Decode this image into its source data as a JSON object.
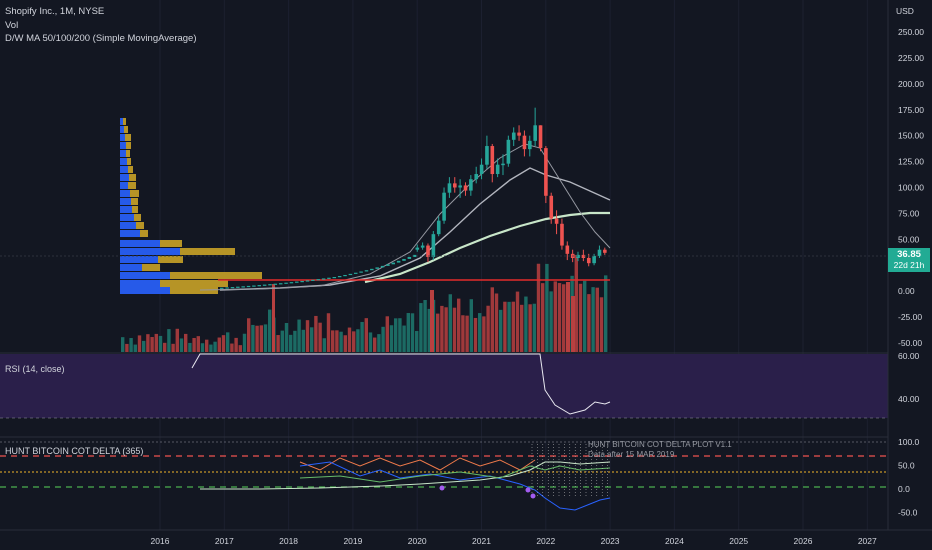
{
  "header": {
    "symbol_line": "Shopify Inc., 1M, NYSE",
    "vol_label": "Vol",
    "ma_label": "D/W MA 50/100/200 (Simple MovingAverage)"
  },
  "price_axis": {
    "currency": "USD",
    "ticks": [
      "250.00",
      "225.00",
      "200.00",
      "175.00",
      "150.00",
      "125.00",
      "100.00",
      "75.00",
      "50.00",
      "25.00",
      "0.00",
      "-25.00",
      "-50.00"
    ]
  },
  "last_price": {
    "value": "36.85",
    "countdown": "22d 21h"
  },
  "rsi_pane": {
    "label": "RSI (14, close)",
    "ticks": [
      "60.00",
      "40.00"
    ]
  },
  "hunt_pane": {
    "label": "HUNT BITCOIN COT DELTA (365)",
    "ticks": [
      "100.0",
      "50.0",
      "0.0",
      "-50.0"
    ],
    "note_line1": "HUNT BITCOIN COT DELTA PLOT V1.1",
    "note_line2": "Data after 15 MAR 2019"
  },
  "time_axis": {
    "labels": [
      "2016",
      "2017",
      "2018",
      "2019",
      "2020",
      "2021",
      "2022",
      "2023",
      "2024",
      "2025",
      "2026",
      "2027"
    ]
  },
  "colors": {
    "background": "#131722",
    "up": "#26a69a",
    "down": "#ef5350",
    "rsi_band": "#2a1f4a",
    "support_line": "#e52b2b",
    "ma_light": "#c8e6c9",
    "ma_grey": "#b2b5be",
    "profile_blue": "#2962ff",
    "profile_gold": "#c9a227"
  },
  "chart_data": {
    "type": "candlestick",
    "timeframe": "1M",
    "symbol": "SHOP",
    "x": [
      "2020-01",
      "2020-02",
      "2020-03",
      "2020-04",
      "2020-05",
      "2020-06",
      "2020-07",
      "2020-08",
      "2020-09",
      "2020-10",
      "2020-11",
      "2020-12",
      "2021-01",
      "2021-02",
      "2021-03",
      "2021-04",
      "2021-05",
      "2021-06",
      "2021-07",
      "2021-08",
      "2021-09",
      "2021-10",
      "2021-11",
      "2021-12",
      "2022-01",
      "2022-02",
      "2022-03",
      "2022-04",
      "2022-05",
      "2022-06",
      "2022-07",
      "2022-08",
      "2022-09",
      "2022-10",
      "2022-11",
      "2022-12"
    ],
    "open": [
      40,
      42,
      44,
      33,
      55,
      68,
      95,
      104,
      100,
      102,
      97,
      108,
      113,
      122,
      140,
      113,
      122,
      123,
      146,
      153,
      150,
      137,
      145,
      160,
      138,
      92,
      70,
      65,
      44,
      36,
      32,
      35,
      32,
      27,
      34,
      40
    ],
    "close": [
      42,
      44,
      33,
      55,
      68,
      95,
      104,
      100,
      102,
      97,
      108,
      113,
      122,
      140,
      113,
      122,
      123,
      146,
      153,
      150,
      137,
      145,
      160,
      138,
      92,
      70,
      65,
      44,
      36,
      32,
      35,
      32,
      27,
      34,
      40,
      37
    ],
    "high": [
      45,
      47,
      46,
      58,
      72,
      100,
      110,
      110,
      108,
      105,
      112,
      120,
      128,
      150,
      142,
      128,
      132,
      150,
      158,
      160,
      155,
      150,
      177,
      160,
      140,
      95,
      78,
      70,
      48,
      40,
      38,
      40,
      36,
      36,
      44,
      42
    ],
    "low": [
      38,
      40,
      28,
      30,
      53,
      65,
      90,
      95,
      90,
      92,
      92,
      104,
      108,
      118,
      105,
      110,
      112,
      120,
      140,
      145,
      130,
      130,
      140,
      135,
      85,
      65,
      55,
      40,
      30,
      28,
      29,
      29,
      24,
      25,
      32,
      35
    ],
    "volume_pane": true,
    "ma_lines": [
      "50",
      "100",
      "200"
    ],
    "support_level": 10,
    "ylim": [
      -60,
      260
    ]
  }
}
